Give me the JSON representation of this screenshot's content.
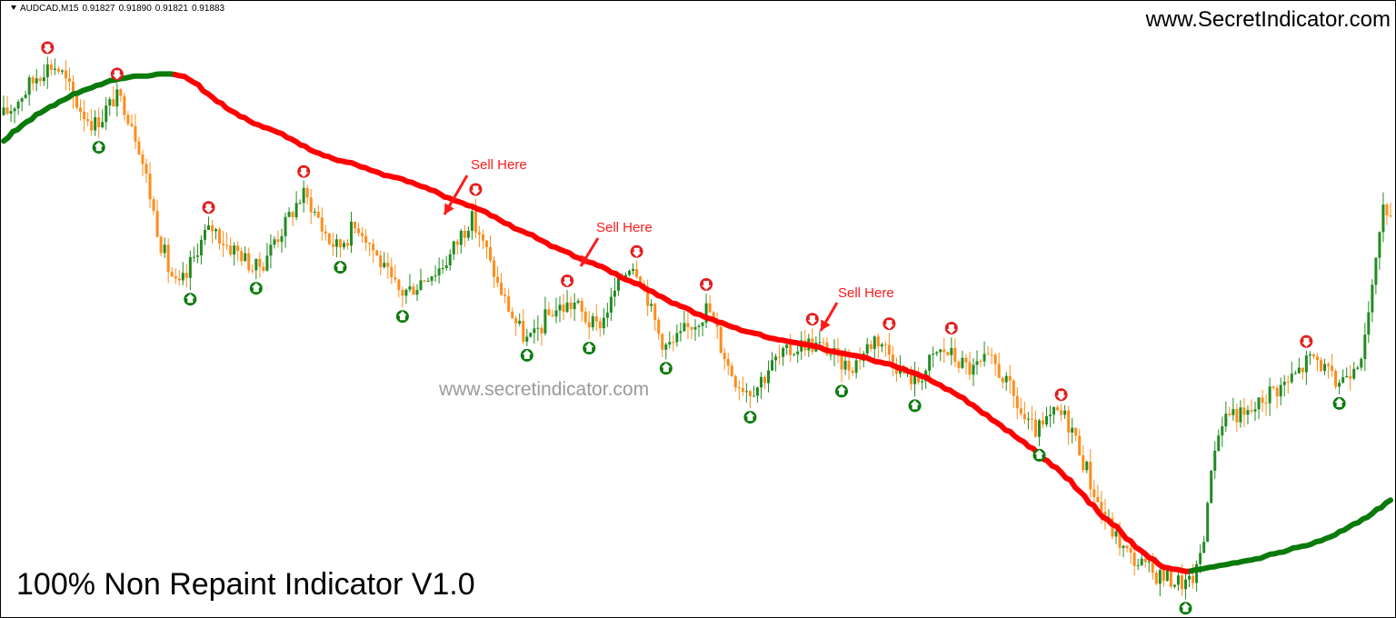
{
  "header": {
    "symbol": "AUDCAD,M15",
    "open": "0.91827",
    "high": "0.91890",
    "low": "0.91821",
    "close": "0.91883"
  },
  "site_url": "www.SecretIndicator.com",
  "watermark": "www.secretindicator.com",
  "bottom_title": "100% Non Repaint Indicator V1.0",
  "colors": {
    "bull_candle": "#228b22",
    "bear_candle": "#ff8c1a",
    "ma_up": "#0a7a0a",
    "ma_down": "#ff0000",
    "arrow_buy": "#0a7a0a",
    "arrow_sell": "#e31c1c",
    "annotation": "#ff1a1a"
  },
  "chart_data": {
    "type": "line",
    "symbol": "AUDCAD",
    "timeframe": "M15",
    "series": [
      {
        "style": "candlestick",
        "values": [
          0.9172,
          0.9175,
          0.9179,
          0.9183,
          0.9187,
          0.9191,
          0.9194,
          0.9195,
          0.9193,
          0.9187,
          0.918,
          0.9175,
          0.9171,
          0.9168,
          0.9171,
          0.9176,
          0.918,
          0.9178,
          0.9172,
          0.9163,
          0.915,
          0.9135,
          0.912,
          0.9108,
          0.9098,
          0.9092,
          0.9096,
          0.9104,
          0.9112,
          0.9117,
          0.912,
          0.9116,
          0.9112,
          0.911,
          0.9108,
          0.9104,
          0.9101,
          0.9103,
          0.9109,
          0.9115,
          0.9119,
          0.9125,
          0.9131,
          0.9135,
          0.9131,
          0.9125,
          0.9118,
          0.9113,
          0.9111,
          0.9115,
          0.9119,
          0.9121,
          0.9116,
          0.911,
          0.9104,
          0.9098,
          0.9093,
          0.909,
          0.9091,
          0.9093,
          0.9096,
          0.9099,
          0.91,
          0.9103,
          0.9107,
          0.9113,
          0.9119,
          0.9124,
          0.9119,
          0.9111,
          0.9102,
          0.9093,
          0.9086,
          0.9079,
          0.9073,
          0.9068,
          0.9069,
          0.9074,
          0.9079,
          0.9082,
          0.9083,
          0.9084,
          0.9085,
          0.908,
          0.9076,
          0.9074,
          0.9078,
          0.9085,
          0.9092,
          0.9099,
          0.9104,
          0.9101,
          0.9092,
          0.9081,
          0.9071,
          0.9065,
          0.9066,
          0.9069,
          0.9073,
          0.9076,
          0.9079,
          0.9083,
          0.9075,
          0.9065,
          0.9056,
          0.905,
          0.9047,
          0.9045,
          0.9047,
          0.9051,
          0.9056,
          0.9059,
          0.9061,
          0.9063,
          0.9065,
          0.9067,
          0.9066,
          0.9065,
          0.9064,
          0.9061,
          0.9058,
          0.9056,
          0.9057,
          0.9061,
          0.9065,
          0.9069,
          0.9067,
          0.9062,
          0.9057,
          0.9053,
          0.9051,
          0.9049,
          0.9053,
          0.9058,
          0.9062,
          0.9063,
          0.9061,
          0.9058,
          0.9056,
          0.9054,
          0.9056,
          0.9058,
          0.9057,
          0.9053,
          0.9047,
          0.9041,
          0.9034,
          0.9028,
          0.9026,
          0.9027,
          0.9031,
          0.9034,
          0.9033,
          0.9029,
          0.9021,
          0.9012,
          0.9002,
          0.8993,
          0.8986,
          0.898,
          0.8975,
          0.897,
          0.8967,
          0.8965,
          0.8962,
          0.896,
          0.8959,
          0.8958,
          0.8957,
          0.8956,
          0.8955,
          0.896,
          0.8972,
          0.9001,
          0.9022,
          0.9032,
          0.9035,
          0.9034,
          0.9032,
          0.9035,
          0.9038,
          0.9042,
          0.9045,
          0.9046,
          0.9048,
          0.9051,
          0.9054,
          0.9058,
          0.906,
          0.9057,
          0.9052,
          0.9048,
          0.905,
          0.9054,
          0.9059,
          0.9063,
          0.908,
          0.911,
          0.9128,
          0.913
        ]
      },
      {
        "name": "",
        "style": "moving-average",
        "values": [
          0.916,
          0.9165,
          0.9169,
          0.9173,
          0.9176,
          0.9179,
          0.9182,
          0.9184,
          0.9186,
          0.9188,
          0.9189,
          0.919,
          0.919,
          0.9191,
          0.9191,
          0.919,
          0.9187,
          0.9182,
          0.9178,
          0.9174,
          0.9171,
          0.9168,
          0.9166,
          0.9164,
          0.9161,
          0.9158,
          0.9155,
          0.9153,
          0.9151,
          0.915,
          0.9148,
          0.9146,
          0.9144,
          0.9143,
          0.9141,
          0.9139,
          0.9137,
          0.9134,
          0.9132,
          0.913,
          0.9128,
          0.9125,
          0.9122,
          0.9119,
          0.9117,
          0.9114,
          0.9111,
          0.9109,
          0.9106,
          0.9104,
          0.9102,
          0.9099,
          0.9096,
          0.9094,
          0.9091,
          0.9088,
          0.9085,
          0.9083,
          0.908,
          0.9078,
          0.9076,
          0.9074,
          0.9072,
          0.9071,
          0.9069,
          0.9068,
          0.9067,
          0.9066,
          0.9065,
          0.9063,
          0.9062,
          0.9061,
          0.906,
          0.9058,
          0.9057,
          0.9055,
          0.9053,
          0.9051,
          0.9048,
          0.9045,
          0.9042,
          0.9038,
          0.9034,
          0.903,
          0.9026,
          0.9022,
          0.9018,
          0.9013,
          0.9009,
          0.9004,
          0.8998,
          0.8992,
          0.8986,
          0.8982,
          0.8976,
          0.8971,
          0.8967,
          0.8963,
          0.8962,
          0.8961,
          0.8962,
          0.8963,
          0.8964,
          0.8965,
          0.8966,
          0.8967,
          0.8969,
          0.897,
          0.8972,
          0.8973,
          0.8975,
          0.8977,
          0.898,
          0.8983,
          0.8986,
          0.899,
          0.8994
        ]
      }
    ],
    "annotations": [
      {
        "text": "Sell Here"
      },
      {
        "text": "Sell Here"
      },
      {
        "text": "Sell Here"
      }
    ],
    "grid": false,
    "legend": "none"
  }
}
